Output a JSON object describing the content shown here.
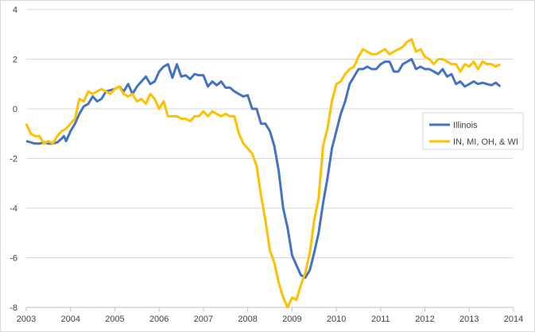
{
  "chart_data": {
    "type": "line",
    "title": "",
    "xlabel": "",
    "ylabel": "",
    "xlim": [
      2003,
      2014
    ],
    "ylim": [
      -8,
      4
    ],
    "yticks": [
      4,
      2,
      0,
      -2,
      -4,
      -6,
      -8
    ],
    "yticks_labels": [
      "4",
      "2",
      "0",
      "-2",
      "-4",
      "-6",
      "-8"
    ],
    "xticks": [
      2003,
      2004,
      2005,
      2006,
      2007,
      2008,
      2009,
      2010,
      2011,
      2012,
      2013,
      2014
    ],
    "xticks_labels": [
      "2003",
      "2004",
      "2005",
      "2006",
      "2007",
      "2008",
      "2009",
      "2010",
      "2011",
      "2012",
      "2013",
      "2014"
    ],
    "grid": "horizontal",
    "legend_position": "right",
    "series": [
      {
        "name": "Illinois",
        "color": "#4472C4",
        "x": [
          2003.0,
          2003.1,
          2003.2,
          2003.3,
          2003.4,
          2003.5,
          2003.6,
          2003.7,
          2003.8,
          2003.85,
          2003.9,
          2004.0,
          2004.1,
          2004.2,
          2004.3,
          2004.4,
          2004.5,
          2004.6,
          2004.7,
          2004.8,
          2004.9,
          2005.0,
          2005.1,
          2005.2,
          2005.3,
          2005.4,
          2005.5,
          2005.6,
          2005.7,
          2005.8,
          2005.9,
          2006.0,
          2006.1,
          2006.2,
          2006.3,
          2006.4,
          2006.5,
          2006.6,
          2006.7,
          2006.8,
          2006.9,
          2007.0,
          2007.1,
          2007.2,
          2007.3,
          2007.4,
          2007.5,
          2007.6,
          2007.7,
          2007.8,
          2007.9,
          2008.0,
          2008.1,
          2008.2,
          2008.3,
          2008.4,
          2008.5,
          2008.6,
          2008.7,
          2008.8,
          2008.9,
          2009.0,
          2009.1,
          2009.2,
          2009.3,
          2009.4,
          2009.5,
          2009.6,
          2009.7,
          2009.8,
          2009.9,
          2010.0,
          2010.1,
          2010.2,
          2010.3,
          2010.4,
          2010.5,
          2010.6,
          2010.7,
          2010.8,
          2010.9,
          2011.0,
          2011.1,
          2011.2,
          2011.3,
          2011.4,
          2011.5,
          2011.6,
          2011.7,
          2011.8,
          2011.9,
          2012.0,
          2012.1,
          2012.2,
          2012.3,
          2012.4,
          2012.5,
          2012.6,
          2012.7,
          2012.8,
          2012.9,
          2013.0,
          2013.1,
          2013.2,
          2013.3,
          2013.4,
          2013.5,
          2013.6,
          2013.7
        ],
        "values": [
          -1.3,
          -1.35,
          -1.4,
          -1.4,
          -1.35,
          -1.4,
          -1.4,
          -1.35,
          -1.2,
          -1.1,
          -1.3,
          -0.9,
          -0.6,
          -0.2,
          0.1,
          0.2,
          0.5,
          0.3,
          0.4,
          0.7,
          0.75,
          0.8,
          0.9,
          0.7,
          1.0,
          0.6,
          0.9,
          1.1,
          1.3,
          1.0,
          1.1,
          1.5,
          1.7,
          1.8,
          1.25,
          1.8,
          1.3,
          1.35,
          1.2,
          1.4,
          1.35,
          1.35,
          0.9,
          1.1,
          0.95,
          1.1,
          0.85,
          0.85,
          0.7,
          0.6,
          0.5,
          0.55,
          0.0,
          0.0,
          -0.6,
          -0.6,
          -0.9,
          -1.5,
          -2.5,
          -4.0,
          -4.8,
          -5.9,
          -6.3,
          -6.7,
          -6.8,
          -6.5,
          -5.8,
          -5.0,
          -3.8,
          -2.8,
          -1.6,
          -0.9,
          -0.2,
          0.3,
          1.0,
          1.3,
          1.6,
          1.6,
          1.7,
          1.6,
          1.6,
          1.8,
          1.9,
          1.9,
          1.5,
          1.5,
          1.8,
          1.9,
          2.0,
          1.6,
          1.7,
          1.6,
          1.6,
          1.5,
          1.4,
          1.6,
          1.3,
          1.4,
          1.0,
          1.1,
          0.9,
          1.0,
          1.1,
          1.0,
          1.05,
          1.0,
          0.95,
          1.05,
          0.9
        ]
      },
      {
        "name": "IN, MI, OH, & WI",
        "color": "#FFC000",
        "x": [
          2003.0,
          2003.1,
          2003.2,
          2003.3,
          2003.4,
          2003.5,
          2003.6,
          2003.7,
          2003.8,
          2003.9,
          2004.0,
          2004.1,
          2004.2,
          2004.3,
          2004.4,
          2004.5,
          2004.6,
          2004.7,
          2004.8,
          2004.9,
          2005.0,
          2005.1,
          2005.2,
          2005.3,
          2005.4,
          2005.5,
          2005.6,
          2005.7,
          2005.8,
          2005.9,
          2006.0,
          2006.1,
          2006.2,
          2006.3,
          2006.4,
          2006.5,
          2006.6,
          2006.7,
          2006.8,
          2006.9,
          2007.0,
          2007.1,
          2007.2,
          2007.3,
          2007.4,
          2007.5,
          2007.6,
          2007.7,
          2007.8,
          2007.9,
          2008.0,
          2008.1,
          2008.2,
          2008.3,
          2008.4,
          2008.5,
          2008.6,
          2008.7,
          2008.8,
          2008.9,
          2009.0,
          2009.1,
          2009.2,
          2009.3,
          2009.4,
          2009.5,
          2009.6,
          2009.7,
          2009.8,
          2009.9,
          2010.0,
          2010.1,
          2010.2,
          2010.3,
          2010.4,
          2010.5,
          2010.6,
          2010.7,
          2010.8,
          2010.9,
          2011.0,
          2011.1,
          2011.2,
          2011.3,
          2011.4,
          2011.5,
          2011.6,
          2011.7,
          2011.8,
          2011.9,
          2012.0,
          2012.1,
          2012.2,
          2012.3,
          2012.4,
          2012.5,
          2012.6,
          2012.7,
          2012.8,
          2012.9,
          2013.0,
          2013.1,
          2013.2,
          2013.3,
          2013.4,
          2013.5,
          2013.6,
          2013.7
        ],
        "values": [
          -0.6,
          -1.0,
          -1.1,
          -1.1,
          -1.4,
          -1.3,
          -1.4,
          -1.1,
          -0.9,
          -0.8,
          -0.6,
          -0.4,
          0.4,
          0.3,
          0.7,
          0.6,
          0.7,
          0.8,
          0.7,
          0.6,
          0.8,
          0.9,
          0.6,
          0.5,
          0.6,
          0.3,
          0.4,
          0.2,
          0.6,
          0.4,
          0.0,
          0.3,
          -0.3,
          -0.3,
          -0.3,
          -0.4,
          -0.4,
          -0.5,
          -0.3,
          -0.3,
          -0.1,
          -0.3,
          -0.1,
          -0.2,
          -0.3,
          -0.2,
          -0.3,
          -0.3,
          -1.0,
          -1.4,
          -1.6,
          -1.8,
          -2.3,
          -3.5,
          -4.5,
          -5.7,
          -6.2,
          -7.0,
          -7.6,
          -8.0,
          -7.6,
          -7.7,
          -7.1,
          -6.6,
          -5.8,
          -4.5,
          -3.6,
          -1.5,
          -0.8,
          0.3,
          1.0,
          1.1,
          1.4,
          1.6,
          1.7,
          2.1,
          2.4,
          2.3,
          2.2,
          2.2,
          2.3,
          2.4,
          2.2,
          2.3,
          2.4,
          2.5,
          2.7,
          2.8,
          2.3,
          2.4,
          2.1,
          2.0,
          1.8,
          2.0,
          2.0,
          1.9,
          1.8,
          1.8,
          1.5,
          1.8,
          1.7,
          1.9,
          1.6,
          1.9,
          1.8,
          1.8,
          1.7,
          1.8
        ]
      }
    ]
  },
  "colors": {
    "illinois": "#4472C4",
    "neighbors": "#FFC000",
    "grid": "#D9D9D9",
    "axis": "#BFBFBF",
    "text": "#404040"
  }
}
